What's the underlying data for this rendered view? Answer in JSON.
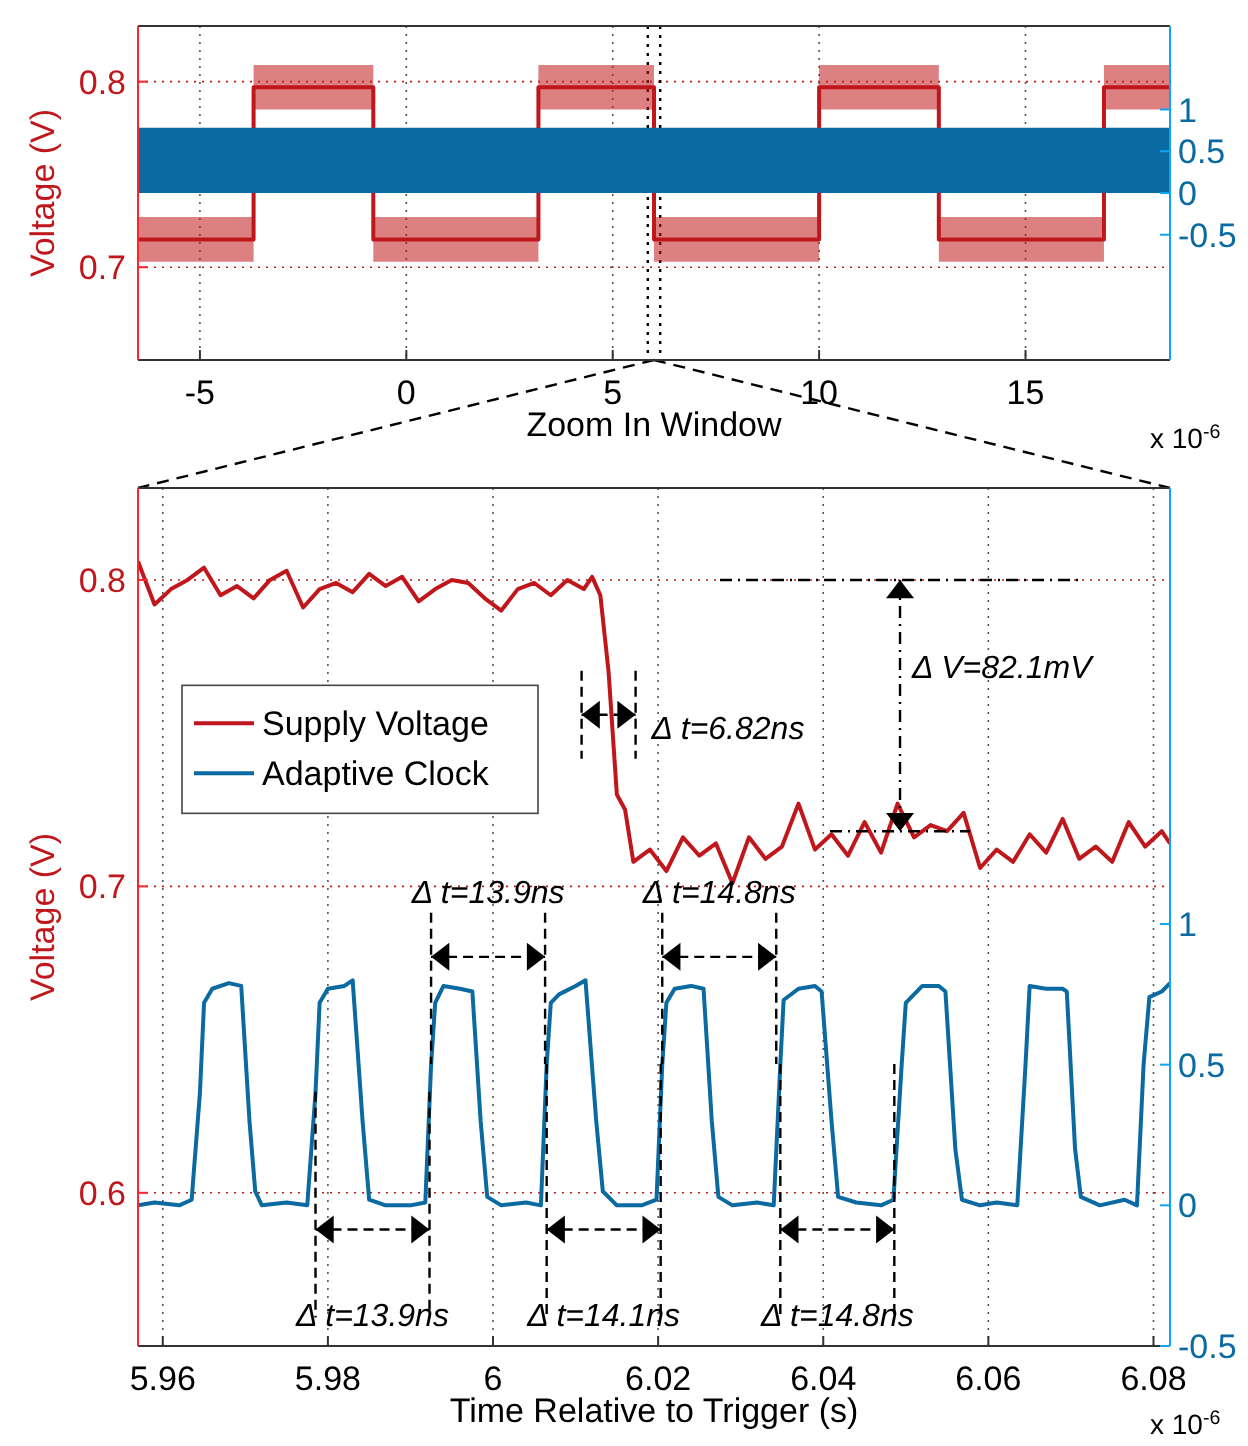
{
  "chart_data": [
    {
      "type": "line",
      "xlabel": "Zoom In Window",
      "ylabel": "Voltage (V)",
      "xlim": [
        -6.5,
        18.5
      ],
      "xticks": [
        -5,
        0,
        5,
        10,
        15
      ],
      "ylim": [
        0.65,
        0.83
      ],
      "yticks": [
        0.7,
        0.8
      ],
      "y2lim": [
        -2,
        2
      ],
      "y2ticks": [
        -0.5,
        0,
        0.5,
        1
      ],
      "grid": true,
      "series": [
        {
          "type": "step",
          "color": "#c0171c",
          "x": [
            -6.5,
            -3.7,
            -0.8,
            3.2,
            6.0,
            10.0,
            12.9,
            16.9,
            18.5
          ],
          "values": [
            0.715,
            0.797,
            0.715,
            0.797,
            0.715,
            0.797,
            0.715,
            0.797,
            0.797
          ],
          "lower": [
            0.703,
            0.785,
            0.703,
            0.785,
            0.703,
            0.785,
            0.703,
            0.785,
            0.785
          ],
          "upper": [
            0.727,
            0.809,
            0.727,
            0.809,
            0.727,
            0.809,
            0.727,
            0.809,
            0.809
          ]
        },
        {
          "type": "area",
          "axis": "y2",
          "color": "#0a6aa1",
          "x": [
            -6.5,
            18.5
          ],
          "values": [
            0.78,
            0.78
          ]
        }
      ],
      "ref_lines": [
        {
          "axis": "x",
          "value": 5.85,
          "color": "#000000",
          "line_style": "dotted"
        },
        {
          "axis": "x",
          "value": 6.15,
          "color": "#000000",
          "line_style": "dotted"
        }
      ],
      "annotations": [
        "x 10$^{-6}$"
      ]
    },
    {
      "type": "line",
      "xlabel": "Time Relative to Trigger (s)",
      "ylabel": "Voltage (V)",
      "xlim": [
        5.957,
        6.082
      ],
      "xticks": [
        5.96,
        5.98,
        6,
        6.02,
        6.04,
        6.06,
        6.08
      ],
      "ylim": [
        0.55,
        0.83
      ],
      "yticks": [
        0.6,
        0.7,
        0.8
      ],
      "y2lim": [
        -0.5,
        2.55
      ],
      "y2ticks": [
        -0.5,
        0,
        0.5,
        1
      ],
      "grid": true,
      "legend": "left",
      "series": [
        {
          "name": "Supply Voltage",
          "color": "#c0171c",
          "x": [
            5.957,
            5.959,
            5.961,
            5.963,
            5.965,
            5.967,
            5.969,
            5.971,
            5.973,
            5.975,
            5.977,
            5.979,
            5.981,
            5.983,
            5.985,
            5.987,
            5.989,
            5.991,
            5.993,
            5.995,
            5.997,
            5.999,
            6.001,
            6.003,
            6.005,
            6.007,
            6.009,
            6.011,
            6.012,
            6.013,
            6.014,
            6.015,
            6.016,
            6.017,
            6.019,
            6.021,
            6.023,
            6.025,
            6.027,
            6.029,
            6.031,
            6.033,
            6.035,
            6.037,
            6.039,
            6.041,
            6.043,
            6.045,
            6.047,
            6.049,
            6.051,
            6.053,
            6.055,
            6.057,
            6.059,
            6.061,
            6.063,
            6.065,
            6.067,
            6.069,
            6.071,
            6.073,
            6.075,
            6.077,
            6.079,
            6.081,
            6.082
          ],
          "values": [
            0.806,
            0.792,
            0.797,
            0.8,
            0.804,
            0.795,
            0.798,
            0.794,
            0.8,
            0.803,
            0.791,
            0.797,
            0.799,
            0.796,
            0.802,
            0.798,
            0.801,
            0.793,
            0.797,
            0.8,
            0.799,
            0.794,
            0.79,
            0.797,
            0.799,
            0.795,
            0.8,
            0.797,
            0.801,
            0.795,
            0.77,
            0.73,
            0.725,
            0.708,
            0.712,
            0.705,
            0.716,
            0.71,
            0.714,
            0.701,
            0.716,
            0.709,
            0.713,
            0.727,
            0.712,
            0.717,
            0.71,
            0.721,
            0.711,
            0.727,
            0.716,
            0.72,
            0.718,
            0.724,
            0.706,
            0.712,
            0.708,
            0.717,
            0.711,
            0.722,
            0.709,
            0.713,
            0.708,
            0.721,
            0.713,
            0.718,
            0.714
          ]
        },
        {
          "name": "Adaptive Clock",
          "axis": "y2",
          "color": "#0a6aa1",
          "x": [
            5.957,
            5.959,
            5.962,
            5.9635,
            5.9645,
            5.965,
            5.966,
            5.968,
            5.9695,
            5.9705,
            5.9712,
            5.972,
            5.975,
            5.9775,
            5.9785,
            5.979,
            5.98,
            5.982,
            5.983,
            5.9842,
            5.985,
            5.987,
            5.99,
            5.9918,
            5.9925,
            5.993,
            5.994,
            5.996,
            5.9975,
            5.9985,
            5.9993,
            6.001,
            6.004,
            6.0058,
            6.0065,
            6.007,
            6.008,
            6.01,
            6.0112,
            6.0125,
            6.0133,
            6.015,
            6.018,
            6.0198,
            6.0205,
            6.021,
            6.022,
            6.024,
            6.0255,
            6.0265,
            6.0273,
            6.029,
            6.032,
            6.034,
            6.0348,
            6.0352,
            6.037,
            6.039,
            6.0398,
            6.041,
            6.0418,
            6.044,
            6.047,
            6.0485,
            6.0495,
            6.05,
            6.052,
            6.054,
            6.0548,
            6.056,
            6.0568,
            6.059,
            6.061,
            6.0635,
            6.0645,
            6.065,
            6.067,
            6.069,
            6.0695,
            6.0705,
            6.0712,
            6.0735,
            6.0765,
            6.078,
            6.0788,
            6.0795,
            6.081,
            6.082
          ],
          "values": [
            0,
            0.01,
            0,
            0.02,
            0.4,
            0.72,
            0.77,
            0.79,
            0.78,
            0.3,
            0.05,
            0,
            0.01,
            0,
            0.4,
            0.72,
            0.77,
            0.78,
            0.8,
            0.3,
            0.02,
            0,
            0,
            0.01,
            0.5,
            0.72,
            0.78,
            0.77,
            0.76,
            0.3,
            0.03,
            0,
            0.01,
            0,
            0.5,
            0.72,
            0.75,
            0.78,
            0.8,
            0.3,
            0.05,
            0,
            0,
            0.02,
            0.5,
            0.72,
            0.77,
            0.78,
            0.77,
            0.3,
            0.03,
            0,
            0.01,
            0,
            0.5,
            0.73,
            0.77,
            0.78,
            0.76,
            0.3,
            0.03,
            0.01,
            0,
            0.02,
            0.5,
            0.72,
            0.78,
            0.78,
            0.76,
            0.2,
            0.02,
            0,
            0.01,
            0,
            0.5,
            0.78,
            0.77,
            0.77,
            0.76,
            0.2,
            0.03,
            0,
            0.02,
            0,
            0.5,
            0.74,
            0.76,
            0.79
          ]
        }
      ],
      "annotations": [
        {
          "text": "Δ t=6.82ns",
          "x": 6.014,
          "y": 0.77
        },
        "Δ V=82.1mV",
        {
          "text": "Δ t=13.9ns",
          "x": 5.9925,
          "y": 0.642
        },
        {
          "text": "Δ t=14.8ns",
          "x": 6.0205,
          "y": 0.642
        },
        {
          "text": "Δ t=13.9ns",
          "x": 5.9785,
          "y": 0.633
        },
        {
          "text": "Δ t=14.1ns",
          "x": 6.0065,
          "y": 0.642
        },
        {
          "text": "Δ t=14.8ns",
          "x": 6.0348,
          "y": 0.642
        },
        "x 10$^{-6}$"
      ]
    }
  ]
}
